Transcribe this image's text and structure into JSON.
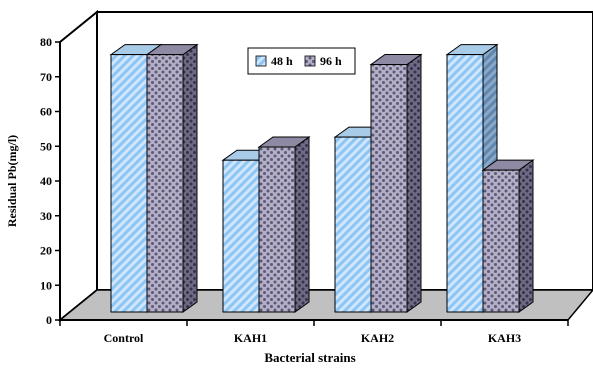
{
  "chart_data": {
    "type": "bar",
    "title": "",
    "xlabel": "Bacterial strains",
    "ylabel": "Residual Pb(mg/l)",
    "ylim": [
      0,
      80
    ],
    "yticks": [
      0,
      10,
      20,
      30,
      40,
      50,
      60,
      70,
      80
    ],
    "categories": [
      "Control",
      "KAH1",
      "KAH2",
      "KAH3"
    ],
    "series": [
      {
        "name": "48 h",
        "values": [
          78,
          46,
          53,
          78
        ],
        "pattern": "diagonal-stripes",
        "color": "#a9d5ff"
      },
      {
        "name": "96 h",
        "values": [
          78,
          50,
          75,
          43
        ],
        "pattern": "dotted",
        "color": "#9a95ad"
      }
    ],
    "legend": "top-center",
    "grid": false,
    "style": "3d"
  }
}
